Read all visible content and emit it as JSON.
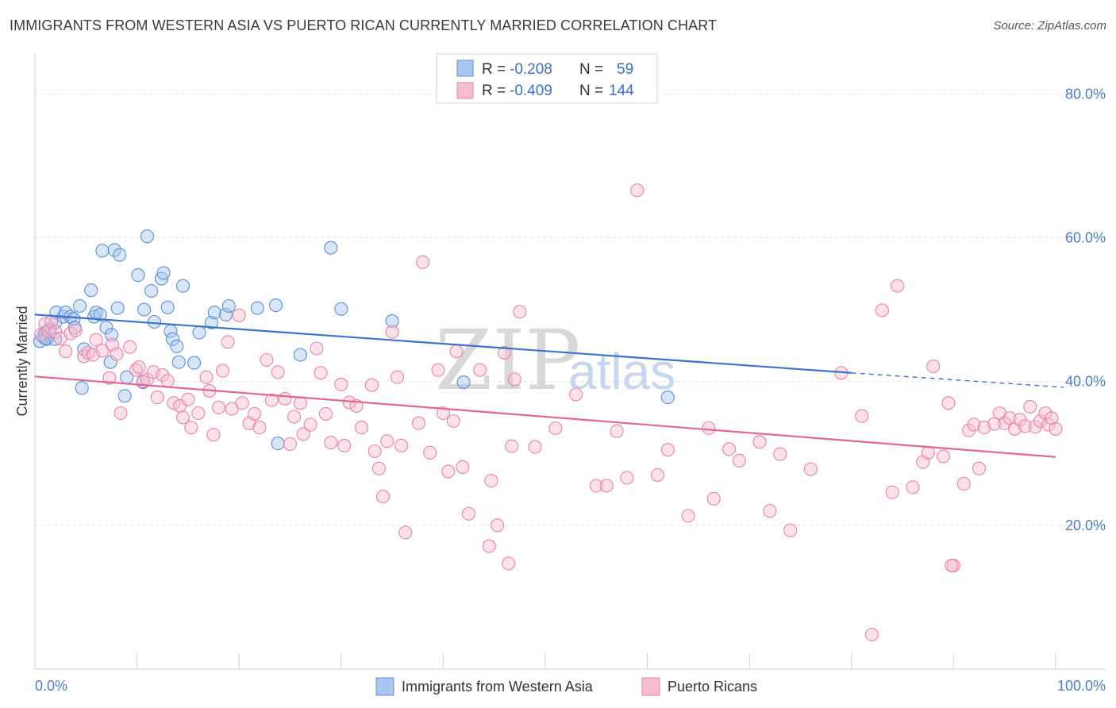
{
  "title": "IMMIGRANTS FROM WESTERN ASIA VS PUERTO RICAN CURRENTLY MARRIED CORRELATION CHART",
  "source": "Source: ZipAtlas.com",
  "watermark": {
    "zip": "ZIP",
    "atlas": "atlas"
  },
  "stats": [
    {
      "r_label": "R =",
      "r_value": "-0.208",
      "n_label": "N =",
      "n_value": "59",
      "color": "#a9c6ee",
      "stroke": "#5b8fd6"
    },
    {
      "r_label": "R =",
      "r_value": "-0.409",
      "n_label": "N =",
      "n_value": "144",
      "color": "#f6bcd0",
      "stroke": "#e882a6"
    }
  ],
  "chart_data": {
    "type": "scatter",
    "ylabel": "Currently Married",
    "xlim": [
      0,
      100
    ],
    "ylim": [
      0,
      85
    ],
    "x_tick_labels": [
      {
        "value": 0,
        "label": "0.0%"
      },
      {
        "value": 100,
        "label": "100.0%"
      }
    ],
    "y_tick_labels": [
      {
        "value": 20,
        "label": "20.0%"
      },
      {
        "value": 40,
        "label": "40.0%"
      },
      {
        "value": 60,
        "label": "60.0%"
      },
      {
        "value": 80,
        "label": "80.0%"
      }
    ],
    "grid": true,
    "series": [
      {
        "name": "Immigrants from Western Asia",
        "color": "#a9c6ee",
        "stroke": "#5b8fd6",
        "trend": {
          "x": [
            0,
            80
          ],
          "y": [
            49.3,
            41.2
          ],
          "dashed_to": [
            100,
            39.2
          ],
          "color": "#3a72cf"
        },
        "points": [
          [
            0.5,
            45.6
          ],
          [
            0.8,
            46.2
          ],
          [
            1.0,
            46.8
          ],
          [
            1.2,
            45.9
          ],
          [
            1.5,
            47.3
          ],
          [
            2.0,
            48.2
          ],
          [
            2.0,
            45.9
          ],
          [
            2.1,
            49.6
          ],
          [
            2.8,
            49.0
          ],
          [
            3.0,
            49.6
          ],
          [
            3.5,
            49.0
          ],
          [
            3.8,
            48.7
          ],
          [
            3.9,
            47.5
          ],
          [
            4.4,
            50.5
          ],
          [
            4.6,
            39.1
          ],
          [
            4.8,
            44.5
          ],
          [
            5.5,
            52.7
          ],
          [
            5.8,
            49.0
          ],
          [
            6.0,
            49.6
          ],
          [
            6.4,
            49.3
          ],
          [
            6.6,
            58.2
          ],
          [
            7.0,
            47.5
          ],
          [
            7.4,
            42.7
          ],
          [
            7.5,
            46.5
          ],
          [
            7.8,
            58.3
          ],
          [
            8.1,
            50.2
          ],
          [
            8.3,
            57.6
          ],
          [
            8.8,
            38.0
          ],
          [
            9.0,
            40.6
          ],
          [
            10.1,
            54.8
          ],
          [
            10.6,
            39.9
          ],
          [
            10.7,
            50.0
          ],
          [
            11.0,
            60.2
          ],
          [
            11.4,
            52.6
          ],
          [
            11.7,
            48.3
          ],
          [
            12.4,
            54.3
          ],
          [
            12.6,
            55.1
          ],
          [
            13.0,
            50.3
          ],
          [
            13.3,
            47.0
          ],
          [
            13.5,
            45.9
          ],
          [
            13.9,
            44.9
          ],
          [
            14.1,
            42.7
          ],
          [
            14.5,
            53.3
          ],
          [
            15.6,
            42.6
          ],
          [
            16.1,
            46.8
          ],
          [
            17.3,
            48.2
          ],
          [
            17.6,
            49.6
          ],
          [
            18.7,
            49.3
          ],
          [
            19.0,
            50.5
          ],
          [
            21.8,
            50.2
          ],
          [
            23.6,
            50.6
          ],
          [
            23.8,
            31.4
          ],
          [
            26.0,
            43.7
          ],
          [
            29.0,
            58.6
          ],
          [
            30.0,
            50.1
          ],
          [
            35.0,
            48.4
          ],
          [
            42.0,
            39.9
          ],
          [
            62.0,
            37.8
          ],
          [
            1.0,
            46.0
          ]
        ]
      },
      {
        "name": "Puerto Ricans",
        "color": "#f6bcd0",
        "stroke": "#e882a6",
        "trend": {
          "x": [
            0,
            100
          ],
          "y": [
            40.7,
            29.5
          ],
          "color": "#e2668f"
        },
        "points": [
          [
            0.6,
            46.5
          ],
          [
            1.0,
            48.0
          ],
          [
            1.3,
            47.0
          ],
          [
            1.6,
            48.3
          ],
          [
            2.0,
            46.9
          ],
          [
            2.5,
            46.0
          ],
          [
            3.0,
            44.2
          ],
          [
            3.5,
            46.7
          ],
          [
            4.0,
            47.1
          ],
          [
            4.8,
            43.5
          ],
          [
            5.2,
            44.0
          ],
          [
            5.7,
            43.7
          ],
          [
            6.0,
            45.8
          ],
          [
            6.6,
            44.3
          ],
          [
            7.3,
            40.5
          ],
          [
            7.6,
            45.1
          ],
          [
            8.0,
            43.8
          ],
          [
            8.4,
            35.6
          ],
          [
            9.3,
            44.8
          ],
          [
            9.9,
            41.6
          ],
          [
            10.2,
            42.0
          ],
          [
            10.6,
            40.0
          ],
          [
            11.0,
            40.3
          ],
          [
            11.6,
            41.3
          ],
          [
            12.0,
            37.8
          ],
          [
            12.5,
            40.9
          ],
          [
            13.0,
            40.1
          ],
          [
            13.6,
            37.0
          ],
          [
            14.2,
            36.6
          ],
          [
            14.5,
            35.0
          ],
          [
            15.0,
            37.5
          ],
          [
            15.3,
            33.6
          ],
          [
            16.0,
            35.6
          ],
          [
            16.8,
            40.6
          ],
          [
            17.1,
            38.7
          ],
          [
            17.5,
            32.6
          ],
          [
            18.0,
            36.4
          ],
          [
            18.4,
            41.5
          ],
          [
            18.9,
            45.5
          ],
          [
            19.3,
            36.2
          ],
          [
            20.0,
            49.2
          ],
          [
            20.3,
            37.0
          ],
          [
            21.0,
            34.2
          ],
          [
            21.5,
            35.5
          ],
          [
            22.0,
            33.6
          ],
          [
            22.7,
            43.0
          ],
          [
            23.2,
            37.4
          ],
          [
            23.8,
            41.3
          ],
          [
            24.5,
            37.6
          ],
          [
            25.0,
            31.3
          ],
          [
            25.4,
            35.1
          ],
          [
            26.0,
            37.0
          ],
          [
            26.3,
            32.7
          ],
          [
            27.0,
            34.0
          ],
          [
            27.6,
            44.6
          ],
          [
            28.0,
            41.2
          ],
          [
            28.5,
            35.5
          ],
          [
            29.0,
            31.5
          ],
          [
            30.0,
            39.6
          ],
          [
            30.3,
            31.1
          ],
          [
            30.8,
            37.1
          ],
          [
            31.5,
            36.6
          ],
          [
            32.0,
            33.6
          ],
          [
            33.0,
            39.5
          ],
          [
            33.3,
            30.3
          ],
          [
            33.7,
            27.9
          ],
          [
            34.1,
            24.0
          ],
          [
            34.5,
            31.7
          ],
          [
            35.0,
            46.9
          ],
          [
            35.5,
            40.6
          ],
          [
            35.9,
            31.1
          ],
          [
            36.3,
            19.0
          ],
          [
            37.6,
            34.2
          ],
          [
            38.0,
            56.6
          ],
          [
            38.7,
            30.1
          ],
          [
            39.5,
            41.6
          ],
          [
            40.0,
            35.6
          ],
          [
            40.5,
            27.5
          ],
          [
            41.0,
            34.5
          ],
          [
            41.3,
            44.2
          ],
          [
            41.9,
            28.1
          ],
          [
            42.5,
            21.6
          ],
          [
            43.6,
            41.6
          ],
          [
            44.5,
            17.1
          ],
          [
            44.7,
            26.2
          ],
          [
            45.3,
            20.0
          ],
          [
            46.0,
            44.0
          ],
          [
            46.4,
            14.7
          ],
          [
            46.7,
            31.0
          ],
          [
            47.0,
            40.3
          ],
          [
            47.5,
            49.7
          ],
          [
            49.0,
            30.9
          ],
          [
            51.0,
            33.5
          ],
          [
            53.0,
            38.2
          ],
          [
            55.0,
            25.5
          ],
          [
            56.0,
            25.5
          ],
          [
            57.0,
            33.1
          ],
          [
            58.0,
            26.6
          ],
          [
            59.0,
            66.6
          ],
          [
            61.0,
            27.0
          ],
          [
            62.0,
            30.5
          ],
          [
            64.0,
            21.3
          ],
          [
            66.0,
            33.5
          ],
          [
            66.5,
            23.7
          ],
          [
            68.0,
            30.6
          ],
          [
            69.0,
            29.0
          ],
          [
            71.0,
            31.6
          ],
          [
            72.0,
            22.0
          ],
          [
            73.0,
            29.9
          ],
          [
            74.0,
            19.3
          ],
          [
            76.0,
            27.8
          ],
          [
            79.0,
            41.2
          ],
          [
            81.0,
            35.2
          ],
          [
            82.0,
            4.8
          ],
          [
            83.0,
            49.9
          ],
          [
            84.0,
            24.6
          ],
          [
            84.5,
            53.3
          ],
          [
            86.0,
            25.3
          ],
          [
            87.0,
            28.8
          ],
          [
            87.5,
            30.1
          ],
          [
            88.0,
            42.1
          ],
          [
            89.0,
            29.6
          ],
          [
            89.5,
            37.0
          ],
          [
            90.0,
            14.4
          ],
          [
            91.0,
            25.8
          ],
          [
            91.5,
            33.2
          ],
          [
            92.0,
            34.0
          ],
          [
            92.5,
            27.9
          ],
          [
            93.0,
            33.6
          ],
          [
            94.0,
            34.1
          ],
          [
            94.5,
            35.6
          ],
          [
            95.0,
            34.2
          ],
          [
            95.5,
            34.9
          ],
          [
            96.0,
            33.4
          ],
          [
            96.5,
            34.7
          ],
          [
            97.0,
            33.8
          ],
          [
            97.5,
            36.5
          ],
          [
            98.0,
            33.7
          ],
          [
            98.5,
            34.5
          ],
          [
            99.0,
            35.6
          ],
          [
            99.3,
            34.0
          ],
          [
            99.6,
            34.9
          ],
          [
            100.0,
            33.4
          ],
          [
            89.8,
            14.4
          ]
        ]
      }
    ]
  },
  "legend": [
    {
      "label": "Immigrants from Western Asia",
      "color": "#a9c6ee",
      "stroke": "#5b8fd6"
    },
    {
      "label": "Puerto Ricans",
      "color": "#f6bcd0",
      "stroke": "#e882a6"
    }
  ]
}
